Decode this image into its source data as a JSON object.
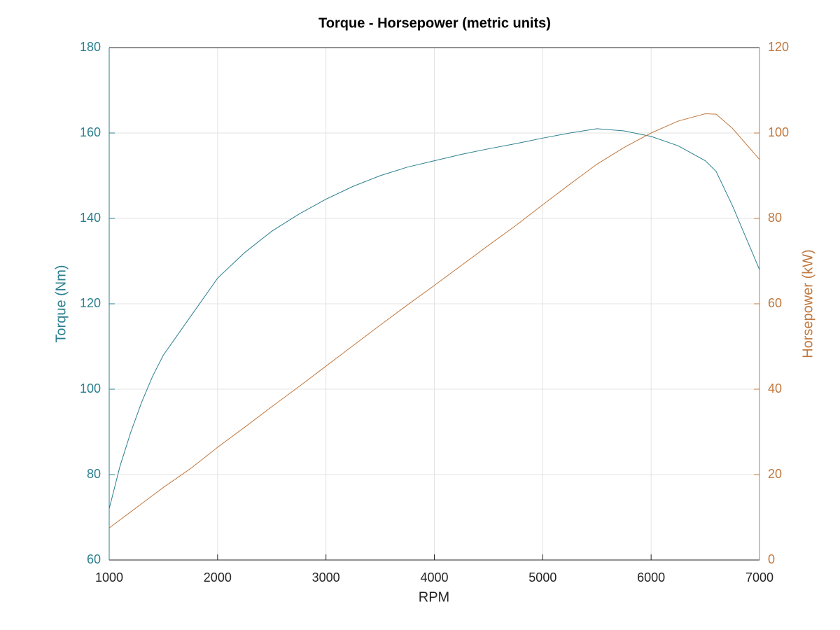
{
  "chart_data": {
    "type": "line",
    "title": "Torque - Horsepower (metric units)",
    "x_label": "RPM",
    "y_label": "Torque (Nm)",
    "y2_label": "Horsepower (kW)",
    "x": [
      1000,
      1100,
      1200,
      1300,
      1400,
      1500,
      1750,
      2000,
      2250,
      2500,
      2750,
      3000,
      3250,
      3500,
      3750,
      4000,
      4250,
      4500,
      4750,
      5000,
      5250,
      5500,
      5750,
      6000,
      6250,
      6500,
      6600,
      6750,
      7000
    ],
    "series": [
      {
        "name": "Torque",
        "color": "#2a7f8f",
        "axis": "y",
        "values": [
          72,
          82,
          90,
          97,
          103,
          108,
          117,
          126,
          132,
          137,
          141,
          144.5,
          147.5,
          150,
          152,
          153.5,
          155,
          156.3,
          157.5,
          158.8,
          160,
          161,
          160.5,
          159.2,
          157,
          153.5,
          151,
          143,
          128
        ]
      },
      {
        "name": "Horsepower",
        "color": "#c0783f",
        "axis": "y2",
        "values": [
          7.5,
          9.4,
          11.3,
          13.2,
          15.1,
          17.0,
          21.4,
          26.4,
          31.1,
          35.9,
          40.6,
          45.4,
          50.2,
          55.0,
          59.7,
          64.3,
          69.0,
          73.7,
          78.3,
          83.2,
          88.0,
          92.7,
          96.6,
          100.0,
          102.8,
          104.5,
          104.4,
          101.1,
          93.8
        ]
      }
    ],
    "xlim": [
      1000,
      7000
    ],
    "xticks": [
      1000,
      2000,
      3000,
      4000,
      5000,
      6000,
      7000
    ],
    "ylim": [
      60,
      180
    ],
    "yticks": [
      60,
      80,
      100,
      120,
      140,
      160,
      180
    ],
    "y2lim": [
      0,
      120
    ],
    "y2ticks": [
      0,
      20,
      40,
      60,
      80,
      100,
      120
    ],
    "grid": true
  }
}
